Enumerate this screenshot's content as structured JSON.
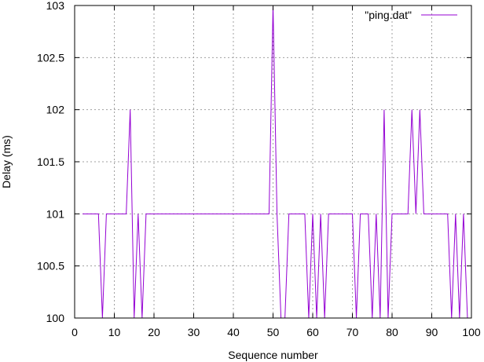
{
  "chart_data": {
    "type": "line",
    "title": "",
    "xlabel": "Sequence number",
    "ylabel": "Delay (ms)",
    "xlim": [
      0,
      100
    ],
    "ylim": [
      100,
      103
    ],
    "x_ticks": [
      "0",
      "10",
      "20",
      "30",
      "40",
      "50",
      "60",
      "70",
      "80",
      "90",
      "100"
    ],
    "y_ticks": [
      "100",
      "100.5",
      "101",
      "101.5",
      "102",
      "102.5",
      "103"
    ],
    "grid": true,
    "legend_position": "top-right",
    "series": [
      {
        "name": "\"ping.dat\"",
        "color": "#9400d3",
        "x": [
          2,
          3,
          4,
          5,
          6,
          7,
          8,
          9,
          10,
          11,
          12,
          13,
          14,
          15,
          16,
          17,
          18,
          19,
          20,
          21,
          22,
          23,
          24,
          25,
          26,
          27,
          28,
          29,
          30,
          31,
          32,
          33,
          34,
          35,
          36,
          37,
          38,
          39,
          40,
          41,
          42,
          43,
          44,
          45,
          46,
          47,
          48,
          49,
          50,
          51,
          52,
          53,
          54,
          55,
          56,
          57,
          58,
          59,
          60,
          61,
          62,
          63,
          64,
          65,
          66,
          67,
          68,
          69,
          70,
          71,
          72,
          73,
          74,
          75,
          76,
          77,
          78,
          79,
          80,
          81,
          82,
          83,
          84,
          85,
          86,
          87,
          88,
          89,
          90,
          91,
          92,
          93,
          94,
          95,
          96,
          97,
          98,
          99
        ],
        "values": [
          101,
          101,
          101,
          101,
          101,
          100,
          101,
          101,
          101,
          101,
          101,
          101,
          102,
          100,
          101,
          100,
          101,
          101,
          101,
          101,
          101,
          101,
          101,
          101,
          101,
          101,
          101,
          101,
          101,
          101,
          101,
          101,
          101,
          101,
          101,
          101,
          101,
          101,
          101,
          101,
          101,
          101,
          101,
          101,
          101,
          101,
          101,
          101,
          103,
          101,
          100,
          100,
          101,
          101,
          101,
          101,
          101,
          100,
          101,
          100,
          101,
          100,
          101,
          101,
          101,
          101,
          101,
          101,
          101,
          100,
          101,
          101,
          101,
          100,
          101,
          100,
          102,
          100,
          101,
          101,
          101,
          101,
          101,
          102,
          101,
          102,
          101,
          101,
          101,
          101,
          101,
          101,
          101,
          100,
          101,
          100,
          101,
          100
        ]
      }
    ]
  }
}
